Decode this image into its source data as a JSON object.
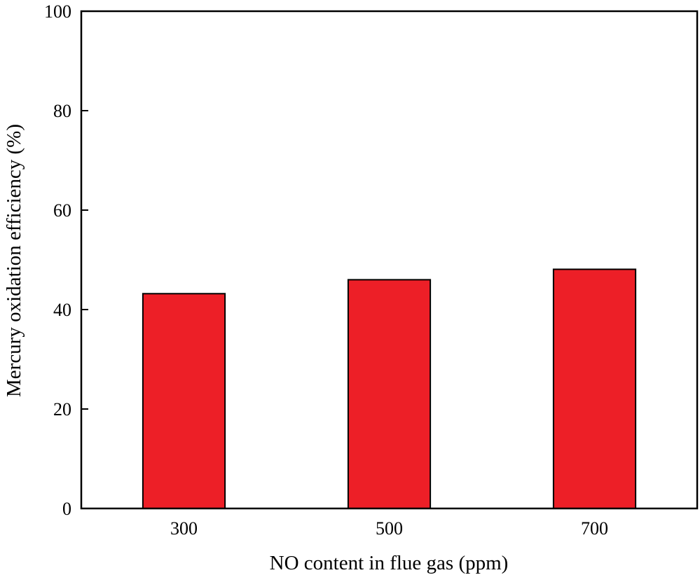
{
  "chart_data": {
    "type": "bar",
    "categories": [
      "300",
      "500",
      "700"
    ],
    "values": [
      43.2,
      46.0,
      48.1
    ],
    "title": "",
    "xlabel": "NO content in flue gas (ppm)",
    "ylabel": "Mercury oxidation efficiency (%)",
    "ylim": [
      0,
      100
    ],
    "yticks": [
      "0",
      "20",
      "40",
      "60",
      "80",
      "100"
    ],
    "grid": false,
    "bar_color": "#ED1F27",
    "bar_edge_color": "#000000"
  }
}
